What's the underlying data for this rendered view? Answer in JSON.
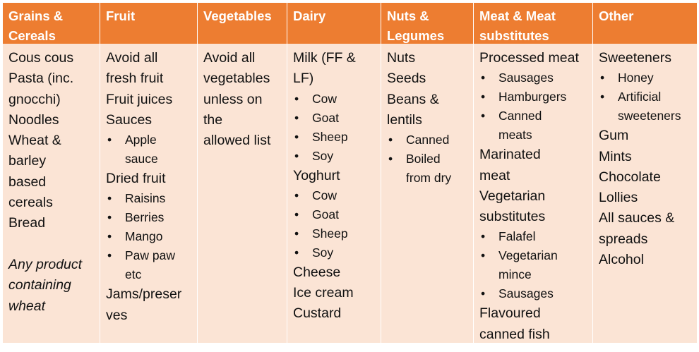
{
  "columns": [
    {
      "header": [
        "Grains &",
        "Cereals"
      ],
      "items": [
        {
          "kind": "line",
          "text": "Cous cous"
        },
        {
          "kind": "line",
          "text": "Pasta (inc."
        },
        {
          "kind": "line",
          "text": "gnocchi)"
        },
        {
          "kind": "line",
          "text": "Noodles"
        },
        {
          "kind": "line",
          "text": "Wheat &"
        },
        {
          "kind": "line",
          "text": "barley"
        },
        {
          "kind": "line",
          "text": "based"
        },
        {
          "kind": "line",
          "text": "cereals"
        },
        {
          "kind": "line",
          "text": "Bread"
        },
        {
          "kind": "spacer"
        },
        {
          "kind": "italic",
          "text": "Any product"
        },
        {
          "kind": "italic",
          "text": "containing"
        },
        {
          "kind": "italic",
          "text": "wheat"
        }
      ]
    },
    {
      "header": [
        "Fruit"
      ],
      "items": [
        {
          "kind": "line",
          "text": "Avoid all"
        },
        {
          "kind": "line",
          "text": "fresh fruit"
        },
        {
          "kind": "line",
          "text": "Fruit juices"
        },
        {
          "kind": "line",
          "text": "Sauces"
        },
        {
          "kind": "bullet",
          "text": "Apple"
        },
        {
          "kind": "cont",
          "text": "sauce"
        },
        {
          "kind": "line",
          "text": "Dried fruit"
        },
        {
          "kind": "bullet",
          "text": "Raisins"
        },
        {
          "kind": "bullet",
          "text": "Berries"
        },
        {
          "kind": "bullet",
          "text": "Mango"
        },
        {
          "kind": "bullet",
          "text": "Paw paw"
        },
        {
          "kind": "cont",
          "text": "etc"
        },
        {
          "kind": "line",
          "text": "Jams/preser"
        },
        {
          "kind": "line",
          "text": "ves"
        }
      ]
    },
    {
      "header": [
        "Vegetables"
      ],
      "items": [
        {
          "kind": "line",
          "text": "Avoid all"
        },
        {
          "kind": "line",
          "text": "vegetables"
        },
        {
          "kind": "line",
          "text": "unless on"
        },
        {
          "kind": "line",
          "text": "the"
        },
        {
          "kind": "line",
          "text": "allowed list"
        }
      ]
    },
    {
      "header": [
        "Dairy"
      ],
      "items": [
        {
          "kind": "line",
          "text": "Milk (FF &"
        },
        {
          "kind": "line",
          "text": "LF)"
        },
        {
          "kind": "bullet",
          "text": "Cow"
        },
        {
          "kind": "bullet",
          "text": "Goat"
        },
        {
          "kind": "bullet",
          "text": "Sheep"
        },
        {
          "kind": "bullet",
          "text": "Soy"
        },
        {
          "kind": "line",
          "text": "Yoghurt"
        },
        {
          "kind": "bullet",
          "text": "Cow"
        },
        {
          "kind": "bullet",
          "text": "Goat"
        },
        {
          "kind": "bullet",
          "text": "Sheep"
        },
        {
          "kind": "bullet",
          "text": "Soy"
        },
        {
          "kind": "line",
          "text": "Cheese"
        },
        {
          "kind": "line",
          "text": "Ice cream"
        },
        {
          "kind": "line",
          "text": "Custard"
        }
      ]
    },
    {
      "header": [
        "Nuts &",
        "Legumes"
      ],
      "items": [
        {
          "kind": "line",
          "text": "Nuts"
        },
        {
          "kind": "line",
          "text": "Seeds"
        },
        {
          "kind": "line",
          "text": "Beans &"
        },
        {
          "kind": "line",
          "text": "lentils"
        },
        {
          "kind": "bullet",
          "text": "Canned"
        },
        {
          "kind": "bullet",
          "text": "Boiled"
        },
        {
          "kind": "cont",
          "text": "from dry"
        }
      ]
    },
    {
      "header": [
        "Meat & Meat",
        "substitutes"
      ],
      "items": [
        {
          "kind": "line",
          "text": "Processed meat"
        },
        {
          "kind": "bullet",
          "text": "Sausages"
        },
        {
          "kind": "bullet",
          "text": "Hamburgers"
        },
        {
          "kind": "bullet",
          "text": "Canned"
        },
        {
          "kind": "cont",
          "text": "meats"
        },
        {
          "kind": "line",
          "text": "Marinated"
        },
        {
          "kind": "line",
          "text": "meat"
        },
        {
          "kind": "line",
          "text": "Vegetarian"
        },
        {
          "kind": "line",
          "text": "substitutes"
        },
        {
          "kind": "bullet",
          "text": "Falafel"
        },
        {
          "kind": "bullet",
          "text": "Vegetarian"
        },
        {
          "kind": "cont",
          "text": "mince"
        },
        {
          "kind": "bullet",
          "text": "Sausages"
        },
        {
          "kind": "line",
          "text": "Flavoured"
        },
        {
          "kind": "line",
          "text": "canned fish"
        }
      ]
    },
    {
      "header": [
        "Other"
      ],
      "items": [
        {
          "kind": "line",
          "text": "Sweeteners"
        },
        {
          "kind": "bullet",
          "text": "Honey"
        },
        {
          "kind": "bullet",
          "text": "Artificial"
        },
        {
          "kind": "cont",
          "text": "sweeteners"
        },
        {
          "kind": "line",
          "text": "Gum"
        },
        {
          "kind": "line",
          "text": "Mints"
        },
        {
          "kind": "line",
          "text": "Chocolate"
        },
        {
          "kind": "line",
          "text": "Lollies"
        },
        {
          "kind": "line",
          "text": "All sauces &"
        },
        {
          "kind": "line",
          "text": "spreads"
        },
        {
          "kind": "line",
          "text": "Alcohol"
        }
      ]
    }
  ]
}
